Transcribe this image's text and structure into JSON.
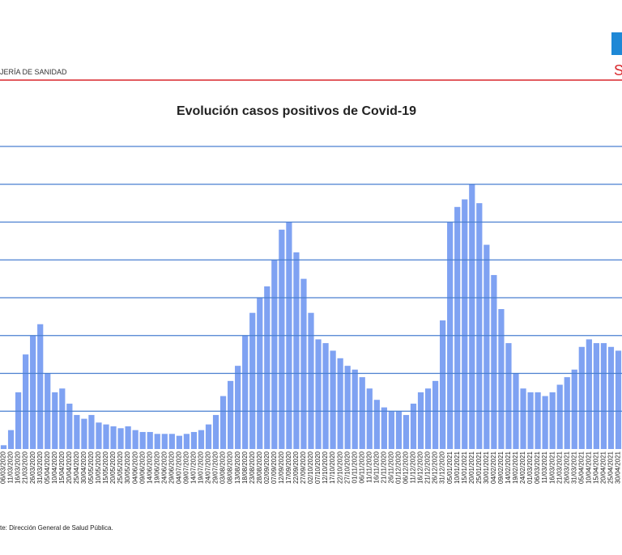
{
  "header": {
    "department": "JERÍA DE SANIDAD",
    "logo_letter": "S"
  },
  "footer": {
    "source": "te: Dirección General de Salud Pública."
  },
  "chart_data": {
    "type": "bar",
    "title": "Evolución casos positivos de Covid-19",
    "color": "#7fa2f2",
    "grid_color": "#4a7fd0",
    "grid": true,
    "ylim": [
      0,
      8000
    ],
    "yticks": [
      1000,
      2000,
      3000,
      4000,
      5000,
      6000,
      7000,
      8000
    ],
    "categories": [
      "06/03/2020",
      "11/03/2020",
      "16/03/2020",
      "21/03/2020",
      "26/03/2020",
      "31/03/2020",
      "05/04/2020",
      "10/04/2020",
      "15/04/2020",
      "20/04/2020",
      "25/04/2020",
      "30/04/2020",
      "05/05/2020",
      "10/05/2020",
      "15/05/2020",
      "20/05/2020",
      "25/05/2020",
      "30/05/2020",
      "04/06/2020",
      "09/06/2020",
      "14/06/2020",
      "19/06/2020",
      "24/06/2020",
      "29/06/2020",
      "04/07/2020",
      "09/07/2020",
      "14/07/2020",
      "19/07/2020",
      "24/07/2020",
      "29/07/2020",
      "03/08/2020",
      "08/08/2020",
      "13/08/2020",
      "18/08/2020",
      "23/08/2020",
      "28/08/2020",
      "02/09/2020",
      "07/09/2020",
      "12/09/2020",
      "17/09/2020",
      "22/09/2020",
      "27/09/2020",
      "02/10/2020",
      "07/10/2020",
      "12/10/2020",
      "17/10/2020",
      "22/10/2020",
      "27/10/2020",
      "01/11/2020",
      "06/11/2020",
      "11/11/2020",
      "16/11/2020",
      "21/11/2020",
      "26/11/2020",
      "01/12/2020",
      "06/12/2020",
      "11/12/2020",
      "16/12/2020",
      "21/12/2020",
      "26/12/2020",
      "31/12/2020",
      "05/01/2021",
      "10/01/2021",
      "15/01/2021",
      "20/01/2021",
      "25/01/2021",
      "30/01/2021",
      "04/02/2021",
      "09/02/2021",
      "14/02/2021",
      "19/02/2021",
      "24/02/2021",
      "01/03/2021",
      "06/03/2021",
      "11/03/2021",
      "16/03/2021",
      "21/03/2021",
      "26/03/2021",
      "31/03/2021",
      "05/04/2021",
      "10/04/2021",
      "15/04/2021",
      "20/04/2021",
      "25/04/2021",
      "30/04/2021"
    ],
    "values": [
      100,
      500,
      1500,
      2500,
      3000,
      3300,
      2000,
      1500,
      1600,
      1200,
      900,
      800,
      900,
      700,
      650,
      600,
      550,
      600,
      500,
      450,
      450,
      400,
      400,
      400,
      350,
      400,
      450,
      500,
      650,
      900,
      1400,
      1800,
      2200,
      3000,
      3600,
      4000,
      4300,
      5000,
      5800,
      6000,
      5200,
      4500,
      3600,
      2900,
      2800,
      2600,
      2400,
      2200,
      2100,
      1900,
      1600,
      1300,
      1100,
      1000,
      1000,
      900,
      1200,
      1500,
      1600,
      1800,
      3400,
      6000,
      6400,
      6600,
      7000,
      6500,
      5400,
      4600,
      3700,
      2800,
      2000,
      1600,
      1500,
      1500,
      1400,
      1500,
      1700,
      1900,
      2100,
      2700,
      2900,
      2800,
      2800,
      2700,
      2600
    ]
  }
}
